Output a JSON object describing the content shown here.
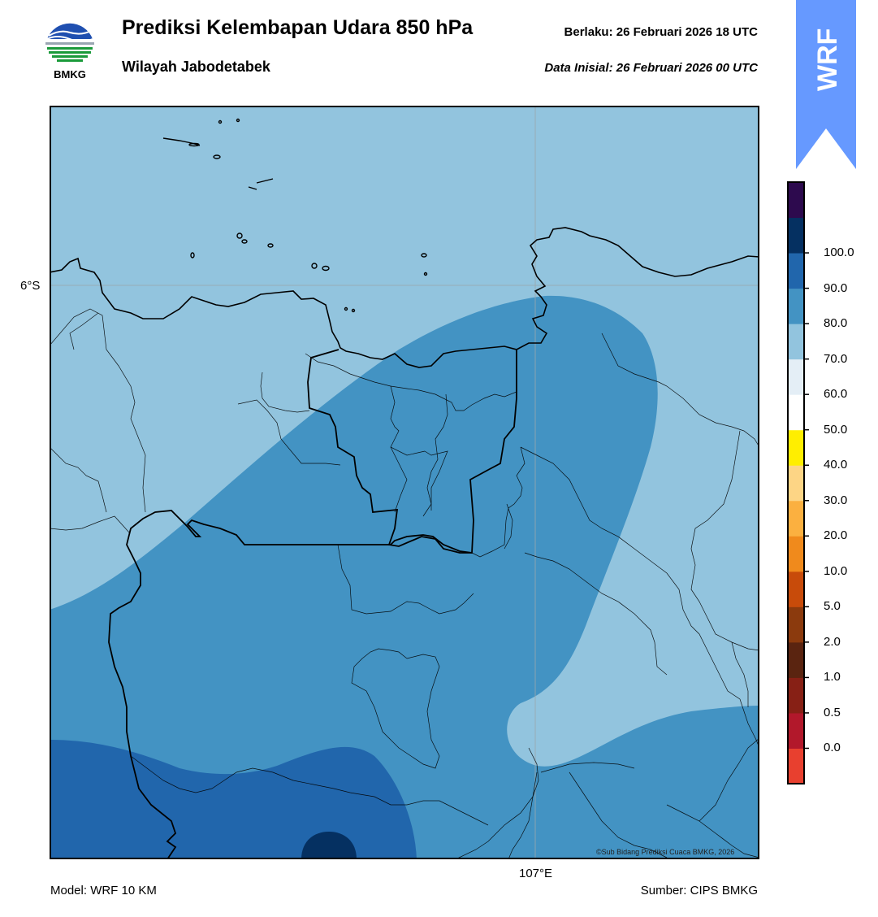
{
  "header": {
    "title": "Prediksi Kelembapan Udara 850 hPa",
    "subtitle": "Wilayah Jabodetabek",
    "valid": "Berlaku:  26 Februari 2026 18 UTC",
    "init": "Data Inisial:  26 Februari 2026 00 UTC"
  },
  "logo": {
    "text": "BMKG",
    "icon": "bmkg-logo-icon"
  },
  "banner": {
    "text": "WRF",
    "color": "#6699ff"
  },
  "map": {
    "lat_label": "6°S",
    "lon_label": "107°E",
    "credit": "©Sub Bidang Prediksi Cuaca BMKG, 2026",
    "fill_colors": {
      "60-70": "#92c4de",
      "70-80": "#4393c3",
      "80-90": "#2166ac",
      "90-100": "#053061"
    }
  },
  "colorbar": {
    "labels": [
      "0.0",
      "0.5",
      "1.0",
      "2.0",
      "5.0",
      "10.0",
      "20.0",
      "30.0",
      "40.0",
      "50.0",
      "60.0",
      "70.0",
      "80.0",
      "90.0",
      "100.0"
    ],
    "colors": [
      "#e8402f",
      "#b2182b",
      "#872015",
      "#5a2410",
      "#8b3a0d",
      "#c84b0a",
      "#f08a1c",
      "#fbb040",
      "#fdd585",
      "#ffee00",
      "#ffffff",
      "#e4eef6",
      "#92c4de",
      "#4393c3",
      "#2166ac",
      "#053061",
      "#2d0a4e"
    ]
  },
  "footer": {
    "model": "Model: WRF 10 KM",
    "source": "Sumber: CIPS BMKG"
  }
}
